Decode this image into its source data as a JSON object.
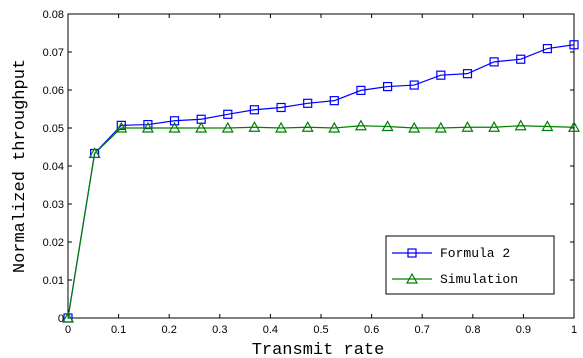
{
  "chart_data": {
    "type": "line",
    "xlabel": "Transmit rate",
    "ylabel": "Normalized throughput",
    "xlim": [
      0,
      1
    ],
    "ylim": [
      0,
      0.08
    ],
    "xticks": [
      0,
      0.1,
      0.2,
      0.3,
      0.4,
      0.5,
      0.6,
      0.7,
      0.8,
      0.9,
      1
    ],
    "xtick_labels": [
      "0",
      "0.1",
      "0.2",
      "0.3",
      "0.4",
      "0.5",
      "0.6",
      "0.7",
      "0.8",
      "0.9",
      "1"
    ],
    "yticks": [
      0,
      0.01,
      0.02,
      0.03,
      0.04,
      0.05,
      0.06,
      0.07,
      0.08
    ],
    "ytick_labels": [
      "0",
      "0.01",
      "0.02",
      "0.03",
      "0.04",
      "0.05",
      "0.06",
      "0.07",
      "0.08"
    ],
    "grid": false,
    "legend_position": "bottom-right",
    "x": [
      0,
      0.0526,
      0.1053,
      0.1579,
      0.2105,
      0.2632,
      0.3158,
      0.3684,
      0.4211,
      0.4737,
      0.5263,
      0.5789,
      0.6316,
      0.6842,
      0.7368,
      0.7895,
      0.8421,
      0.8947,
      0.9474,
      1.0
    ],
    "series": [
      {
        "name": "Formula 2",
        "color": "#0000ff",
        "marker": "square",
        "values": [
          0,
          0.0433,
          0.0507,
          0.0509,
          0.0519,
          0.0523,
          0.0536,
          0.0548,
          0.0554,
          0.0565,
          0.0572,
          0.0599,
          0.0609,
          0.0613,
          0.0639,
          0.0643,
          0.0674,
          0.0681,
          0.0709,
          0.0719
        ]
      },
      {
        "name": "Simulation",
        "color": "#008000",
        "marker": "triangle",
        "values": [
          0,
          0.0433,
          0.05,
          0.05,
          0.05,
          0.05,
          0.05,
          0.0502,
          0.05,
          0.0502,
          0.05,
          0.0506,
          0.0504,
          0.05,
          0.05,
          0.0502,
          0.0502,
          0.0506,
          0.0504,
          0.0502
        ]
      }
    ]
  }
}
